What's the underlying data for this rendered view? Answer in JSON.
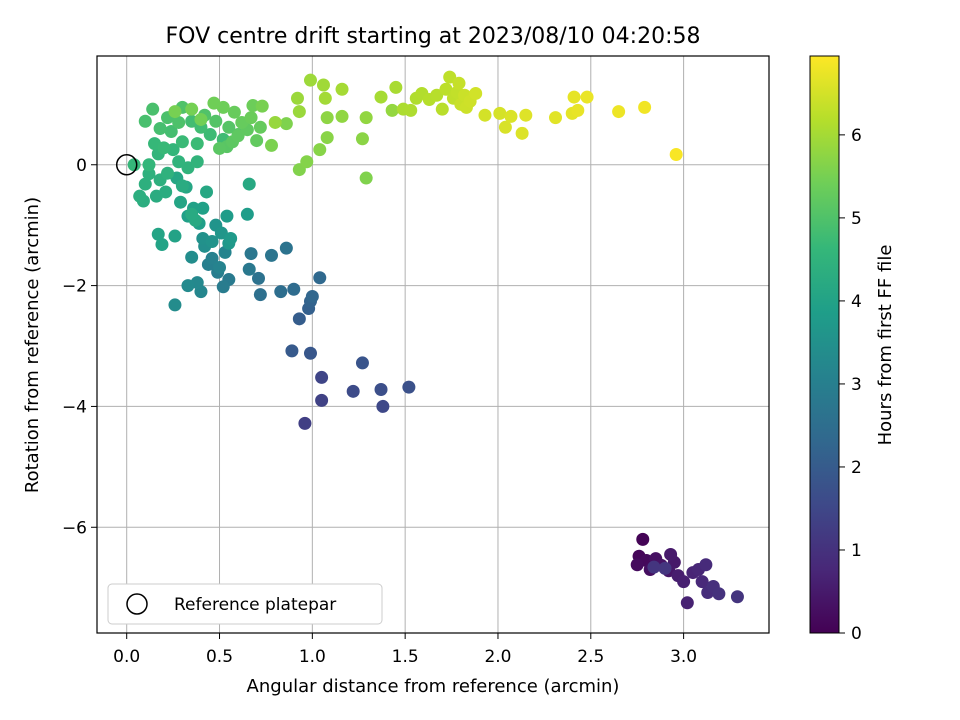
{
  "chart_data": {
    "type": "scatter",
    "title": "FOV centre drift starting at 2023/08/10 04:20:58",
    "xlabel": "Angular distance from reference (arcmin)",
    "ylabel": "Rotation from reference (arcmin)",
    "xlim": [
      -0.16,
      3.46
    ],
    "ylim": [
      -7.75,
      1.8
    ],
    "xticks": [
      "0.0",
      "0.5",
      "1.0",
      "1.5",
      "2.0",
      "2.5",
      "3.0"
    ],
    "xtick_values": [
      0,
      0.5,
      1.0,
      1.5,
      2.0,
      2.5,
      3.0
    ],
    "yticks": [
      "−6",
      "−4",
      "−2",
      "0"
    ],
    "ytick_values": [
      -6,
      -4,
      -2,
      0
    ],
    "grid": true,
    "colormap": "viridis",
    "colorbar": {
      "label": "Hours from first FF file",
      "range": [
        0,
        6.95
      ],
      "ticks": [
        "0",
        "1",
        "2",
        "3",
        "4",
        "5",
        "6"
      ],
      "tick_values": [
        0,
        1,
        2,
        3,
        4,
        5,
        6
      ]
    },
    "legend": {
      "label": "Reference platepar",
      "placement": "lower-left"
    },
    "reference_point": [
      0,
      0
    ],
    "points": [
      [
        2.78,
        -6.2,
        0.05
      ],
      [
        2.76,
        -6.48,
        0.1
      ],
      [
        2.8,
        -6.55,
        0.15
      ],
      [
        2.75,
        -6.62,
        0.2
      ],
      [
        2.82,
        -6.7,
        0.25
      ],
      [
        2.85,
        -6.52,
        0.3
      ],
      [
        2.88,
        -6.63,
        0.35
      ],
      [
        2.92,
        -6.72,
        0.4
      ],
      [
        2.95,
        -6.58,
        0.45
      ],
      [
        2.93,
        -6.45,
        0.5
      ],
      [
        2.97,
        -6.8,
        0.55
      ],
      [
        3.0,
        -6.9,
        0.6
      ],
      [
        3.02,
        -7.25,
        0.65
      ],
      [
        3.05,
        -6.75,
        0.7
      ],
      [
        3.08,
        -6.7,
        0.75
      ],
      [
        3.1,
        -6.9,
        0.8
      ],
      [
        3.12,
        -6.62,
        0.85
      ],
      [
        3.13,
        -7.08,
        0.9
      ],
      [
        3.16,
        -6.98,
        0.95
      ],
      [
        3.19,
        -7.1,
        1.0
      ],
      [
        3.29,
        -7.15,
        1.05
      ],
      [
        2.84,
        -6.66,
        1.08
      ],
      [
        2.9,
        -6.68,
        1.1
      ],
      [
        0.96,
        -4.28,
        1.3
      ],
      [
        1.05,
        -3.9,
        1.38
      ],
      [
        1.05,
        -3.52,
        1.45
      ],
      [
        1.38,
        -4.0,
        1.52
      ],
      [
        1.22,
        -3.75,
        1.6
      ],
      [
        1.37,
        -3.72,
        1.68
      ],
      [
        1.52,
        -3.68,
        1.75
      ],
      [
        1.27,
        -3.28,
        1.82
      ],
      [
        0.99,
        -3.12,
        1.9
      ],
      [
        0.89,
        -3.08,
        1.97
      ],
      [
        0.93,
        -2.55,
        2.05
      ],
      [
        0.98,
        -2.38,
        2.12
      ],
      [
        0.99,
        -2.26,
        2.2
      ],
      [
        1.0,
        -2.18,
        2.28
      ],
      [
        1.04,
        -1.87,
        2.35
      ],
      [
        0.9,
        -2.06,
        2.42
      ],
      [
        0.83,
        -2.1,
        2.5
      ],
      [
        0.72,
        -2.15,
        2.55
      ],
      [
        0.71,
        -1.88,
        2.6
      ],
      [
        0.86,
        -1.38,
        2.65
      ],
      [
        0.78,
        -1.5,
        2.7
      ],
      [
        0.67,
        -1.47,
        2.75
      ],
      [
        0.66,
        -1.73,
        2.8
      ],
      [
        0.55,
        -1.9,
        2.85
      ],
      [
        0.52,
        -2.02,
        2.9
      ],
      [
        0.49,
        -1.78,
        2.95
      ],
      [
        0.44,
        -1.65,
        3.0
      ],
      [
        0.46,
        -1.55,
        3.05
      ],
      [
        0.5,
        -1.7,
        3.1
      ],
      [
        0.53,
        -1.45,
        3.15
      ],
      [
        0.4,
        -2.1,
        3.2
      ],
      [
        0.38,
        -1.95,
        3.25
      ],
      [
        0.33,
        -2.0,
        3.3
      ],
      [
        0.26,
        -2.32,
        3.35
      ],
      [
        0.35,
        -1.53,
        3.4
      ],
      [
        0.42,
        -1.35,
        3.45
      ],
      [
        0.41,
        -1.22,
        3.5
      ],
      [
        0.46,
        -1.27,
        3.55
      ],
      [
        0.48,
        -1.0,
        3.6
      ],
      [
        0.51,
        -1.13,
        3.65
      ],
      [
        0.55,
        -1.3,
        3.7
      ],
      [
        0.56,
        -1.22,
        3.75
      ],
      [
        0.54,
        -0.85,
        3.8
      ],
      [
        0.65,
        -0.82,
        3.85
      ],
      [
        0.39,
        -0.97,
        3.9
      ],
      [
        0.33,
        -0.85,
        3.92
      ],
      [
        0.41,
        -0.72,
        3.95
      ],
      [
        0.36,
        -0.72,
        3.97
      ],
      [
        0.26,
        -1.18,
        4.0
      ],
      [
        0.19,
        -1.32,
        4.02
      ],
      [
        0.17,
        -1.15,
        4.05
      ],
      [
        0.29,
        -0.62,
        4.08
      ],
      [
        0.32,
        -0.37,
        4.1
      ],
      [
        0.27,
        -0.22,
        4.12
      ],
      [
        0.43,
        -0.45,
        4.15
      ],
      [
        0.66,
        -0.32,
        4.18
      ],
      [
        0.37,
        -0.92,
        4.2
      ],
      [
        0.35,
        -0.82,
        4.22
      ],
      [
        0.3,
        -0.35,
        4.25
      ],
      [
        0.16,
        -0.52,
        4.28
      ],
      [
        0.21,
        -0.45,
        4.3
      ],
      [
        0.09,
        -0.6,
        4.32
      ],
      [
        0.07,
        -0.52,
        4.35
      ],
      [
        0.1,
        -0.32,
        4.38
      ],
      [
        0.18,
        -0.25,
        4.4
      ],
      [
        0.12,
        -0.15,
        4.42
      ],
      [
        0.22,
        -0.14,
        4.45
      ],
      [
        0.33,
        -0.05,
        4.48
      ],
      [
        0.28,
        0.05,
        4.5
      ],
      [
        0.38,
        0.05,
        4.52
      ],
      [
        0.17,
        0.18,
        4.55
      ],
      [
        0.25,
        0.25,
        4.58
      ],
      [
        0.12,
        0.0,
        4.6
      ],
      [
        0.04,
        0.0,
        4.62
      ],
      [
        0.15,
        0.35,
        4.65
      ],
      [
        0.2,
        0.28,
        4.68
      ],
      [
        0.3,
        0.38,
        4.7
      ],
      [
        0.38,
        0.35,
        4.72
      ],
      [
        0.45,
        0.5,
        4.75
      ],
      [
        0.52,
        0.42,
        4.78
      ],
      [
        0.4,
        0.62,
        4.8
      ],
      [
        0.35,
        0.72,
        4.82
      ],
      [
        0.24,
        0.55,
        4.85
      ],
      [
        0.18,
        0.6,
        4.88
      ],
      [
        0.1,
        0.72,
        4.9
      ],
      [
        0.14,
        0.92,
        4.92
      ],
      [
        0.22,
        0.78,
        4.95
      ],
      [
        0.28,
        0.7,
        4.98
      ],
      [
        0.3,
        0.95,
        5.0
      ],
      [
        0.42,
        0.82,
        5.02
      ],
      [
        0.48,
        0.72,
        5.05
      ],
      [
        0.55,
        0.62,
        5.08
      ],
      [
        0.6,
        0.5,
        5.1
      ],
      [
        0.54,
        0.3,
        5.12
      ],
      [
        0.5,
        0.27,
        5.15
      ],
      [
        0.57,
        0.38,
        5.18
      ],
      [
        0.6,
        0.48,
        5.2
      ],
      [
        0.65,
        0.58,
        5.22
      ],
      [
        0.7,
        0.4,
        5.25
      ],
      [
        0.72,
        0.62,
        5.28
      ],
      [
        0.62,
        0.7,
        5.3
      ],
      [
        0.58,
        0.87,
        5.32
      ],
      [
        0.67,
        0.78,
        5.35
      ],
      [
        0.68,
        0.98,
        5.38
      ],
      [
        0.52,
        0.95,
        5.4
      ],
      [
        0.47,
        1.02,
        5.42
      ],
      [
        0.4,
        0.75,
        5.45
      ],
      [
        0.35,
        0.92,
        5.48
      ],
      [
        0.26,
        0.88,
        5.5
      ],
      [
        0.73,
        0.97,
        5.52
      ],
      [
        0.78,
        0.32,
        5.55
      ],
      [
        0.86,
        0.68,
        5.58
      ],
      [
        1.29,
        -0.22,
        5.6
      ],
      [
        0.93,
        -0.08,
        5.62
      ],
      [
        0.97,
        0.05,
        5.65
      ],
      [
        1.04,
        0.25,
        5.68
      ],
      [
        1.08,
        0.45,
        5.7
      ],
      [
        1.27,
        0.43,
        5.72
      ],
      [
        1.08,
        0.78,
        5.75
      ],
      [
        1.16,
        0.8,
        5.78
      ],
      [
        1.29,
        0.78,
        5.8
      ],
      [
        1.43,
        0.9,
        5.82
      ],
      [
        0.8,
        0.7,
        5.85
      ],
      [
        0.93,
        0.88,
        5.88
      ],
      [
        0.92,
        1.1,
        5.9
      ],
      [
        0.99,
        1.4,
        5.92
      ],
      [
        1.06,
        1.32,
        5.95
      ],
      [
        1.07,
        1.1,
        5.98
      ],
      [
        1.16,
        1.25,
        6.0
      ],
      [
        1.37,
        1.12,
        6.02
      ],
      [
        1.45,
        1.28,
        6.05
      ],
      [
        1.49,
        0.92,
        6.08
      ],
      [
        1.53,
        0.9,
        6.1
      ],
      [
        1.56,
        1.1,
        6.12
      ],
      [
        1.59,
        1.18,
        6.15
      ],
      [
        1.63,
        1.08,
        6.18
      ],
      [
        1.67,
        1.15,
        6.2
      ],
      [
        1.7,
        0.92,
        6.22
      ],
      [
        1.72,
        1.25,
        6.25
      ],
      [
        1.74,
        1.45,
        6.28
      ],
      [
        1.76,
        1.1,
        6.3
      ],
      [
        1.78,
        1.2,
        6.32
      ],
      [
        1.79,
        1.35,
        6.35
      ],
      [
        1.8,
        1.0,
        6.38
      ],
      [
        1.82,
        1.15,
        6.4
      ],
      [
        1.83,
        0.95,
        6.42
      ],
      [
        1.85,
        1.05,
        6.45
      ],
      [
        1.88,
        1.18,
        6.48
      ],
      [
        1.93,
        0.82,
        6.5
      ],
      [
        2.01,
        0.85,
        6.52
      ],
      [
        2.04,
        0.62,
        6.55
      ],
      [
        2.07,
        0.8,
        6.58
      ],
      [
        2.13,
        0.52,
        6.6
      ],
      [
        2.15,
        0.82,
        6.62
      ],
      [
        2.31,
        0.78,
        6.65
      ],
      [
        2.4,
        0.85,
        6.68
      ],
      [
        2.41,
        1.12,
        6.7
      ],
      [
        2.43,
        0.9,
        6.72
      ],
      [
        2.48,
        1.12,
        6.75
      ],
      [
        2.65,
        0.88,
        6.78
      ],
      [
        2.79,
        0.95,
        6.82
      ],
      [
        2.96,
        0.17,
        6.9
      ]
    ]
  }
}
